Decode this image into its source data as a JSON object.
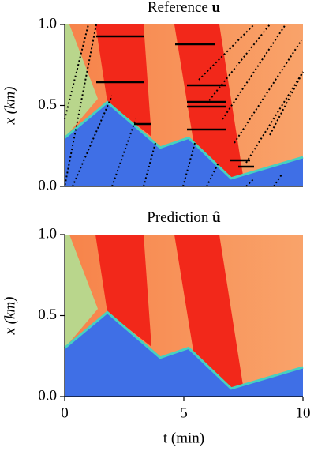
{
  "chart_data": [
    {
      "type": "heatmap",
      "title": "Reference",
      "title_symbol": "u",
      "ylabel": "x (km)",
      "xlim": [
        0,
        10
      ],
      "ylim": [
        0,
        1
      ],
      "yticks": [
        {
          "value": 0,
          "label": "0.0"
        },
        {
          "value": 0.5,
          "label": "0.5"
        },
        {
          "value": 1,
          "label": "1.0"
        }
      ],
      "trajectories": true
    },
    {
      "type": "heatmap",
      "title": "Prediction",
      "title_symbol": "û",
      "ylabel": "x (km)",
      "xlabel": "t (min)",
      "xlim": [
        0,
        10
      ],
      "ylim": [
        0,
        1
      ],
      "yticks": [
        {
          "value": 0,
          "label": "0.0"
        },
        {
          "value": 0.5,
          "label": "0.5"
        },
        {
          "value": 1,
          "label": "1.0"
        }
      ],
      "xticks": [
        0,
        5,
        10
      ],
      "trajectories": false
    }
  ]
}
